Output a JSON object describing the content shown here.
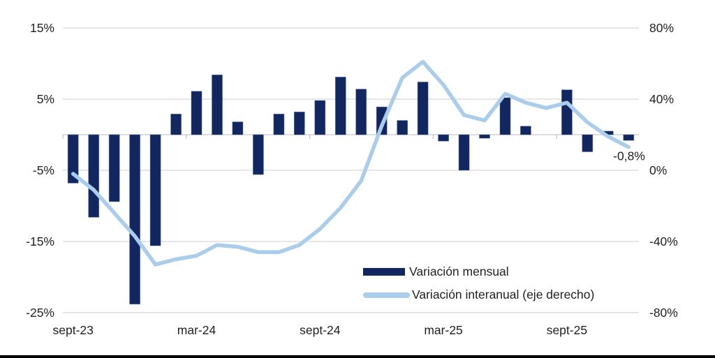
{
  "chart_data": {
    "type": "combo-bar-line",
    "title": "",
    "grid": true,
    "categories": [
      "sept-23",
      "oct-23",
      "nov-23",
      "dic-23",
      "ene-24",
      "feb-24",
      "mar-24",
      "abr-24",
      "may-24",
      "jun-24",
      "jul-24",
      "ago-24",
      "sept-24",
      "oct-24",
      "nov-24",
      "dic-24",
      "ene-25",
      "feb-25",
      "mar-25",
      "abr-25",
      "may-25",
      "jun-25",
      "jul-25",
      "ago-25",
      "sept-25",
      "oct-25",
      "nov-25",
      "dic-25"
    ],
    "x_axis": {
      "visible_tick_labels": [
        {
          "index": 0,
          "label": "sept-23"
        },
        {
          "index": 6,
          "label": "mar-24"
        },
        {
          "index": 12,
          "label": "sept-24"
        },
        {
          "index": 18,
          "label": "mar-25"
        },
        {
          "index": 24,
          "label": "sept-25"
        }
      ]
    },
    "left_axis": {
      "tick_labels": [
        "15%",
        "5%",
        "-5%",
        "-15%",
        "-25%"
      ],
      "tick_values": [
        15,
        5,
        -5,
        -15,
        -25
      ],
      "range": [
        -25,
        15
      ],
      "unit": "%"
    },
    "right_axis": {
      "tick_labels": [
        "80%",
        "40%",
        "0%",
        "-40%",
        "-80%"
      ],
      "tick_values": [
        80,
        40,
        0,
        -40,
        -80
      ],
      "range": [
        -80,
        80
      ],
      "unit": "%"
    },
    "series": [
      {
        "name": "Variación mensual",
        "type": "bar",
        "axis": "left",
        "color": "#12265f",
        "values": [
          -6.8,
          -11.6,
          -9.4,
          -23.8,
          -15.6,
          2.9,
          6.1,
          8.4,
          1.8,
          -5.6,
          2.9,
          3.2,
          4.8,
          8.1,
          6.4,
          3.9,
          2.0,
          7.4,
          -0.9,
          -5.0,
          -0.5,
          5.2,
          1.2,
          0.0,
          6.3,
          -2.4,
          0.5,
          -0.8
        ]
      },
      {
        "name": "Variación interanual (eje derecho)",
        "type": "line",
        "axis": "right",
        "color": "#a9cdeb",
        "values": [
          -2,
          -11,
          -24,
          -37,
          -53,
          -50,
          -48,
          -42,
          -43,
          -46,
          -46,
          -42,
          -33,
          -21,
          -6,
          25,
          52,
          61,
          48,
          31,
          28,
          43,
          38,
          35,
          38,
          27,
          19,
          13
        ]
      }
    ],
    "annotation": {
      "text": "-0,8%",
      "target_series": "Variación mensual",
      "target_category": "dic-25"
    },
    "legend": {
      "position": "inside-bottom-center"
    }
  },
  "colors": {
    "bar_fill": "#12265f",
    "bar_edge": "#46659f",
    "line_stroke": "#a9cdeb",
    "gridline": "#d8d8d8",
    "axis_line": "#c6c6c6",
    "text": "#1f1f1f",
    "bottom_border": "#000000"
  }
}
